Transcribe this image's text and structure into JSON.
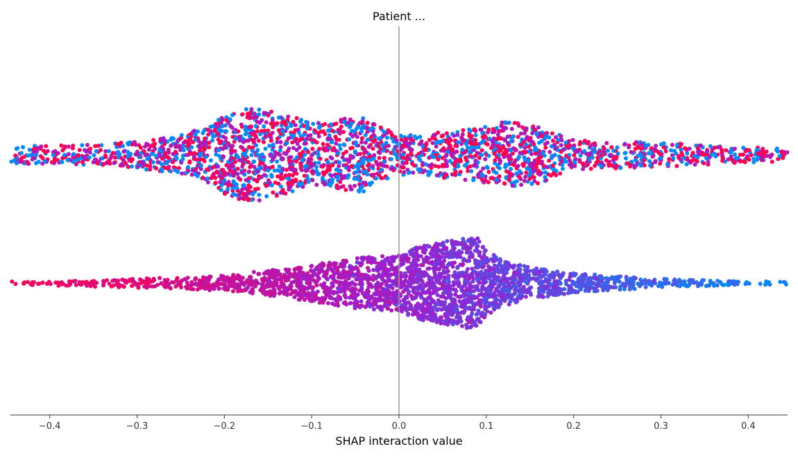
{
  "chart_data": {
    "type": "scatter",
    "subtype": "shap-beeswarm",
    "title": "Patient ...",
    "xlabel": "SHAP interaction value",
    "ylabel": "",
    "xlim": [
      -0.445,
      0.445
    ],
    "xticks": [
      {
        "value": -0.4,
        "label": "−0.4"
      },
      {
        "value": -0.3,
        "label": "−0.3"
      },
      {
        "value": -0.2,
        "label": "−0.2"
      },
      {
        "value": -0.1,
        "label": "−0.1"
      },
      {
        "value": 0.0,
        "label": "0.0"
      },
      {
        "value": 0.1,
        "label": "0.1"
      },
      {
        "value": 0.2,
        "label": "0.2"
      },
      {
        "value": 0.3,
        "label": "0.3"
      },
      {
        "value": 0.4,
        "label": "0.4"
      }
    ],
    "reference_line_x": 0.0,
    "grid": false,
    "legend": "none",
    "colors": {
      "low_feature_value": "#008bfb",
      "high_feature_value": "#ff0052",
      "mid_feature_value": "#9b1fd0",
      "reference_line": "#999999",
      "axis": "#333333"
    },
    "series": [
      {
        "row": 1,
        "points_shown": 2600,
        "x_min": -0.445,
        "x_max": 0.445,
        "density_profile": {
          "x": [
            -0.44,
            -0.4,
            -0.35,
            -0.3,
            -0.25,
            -0.22,
            -0.2,
            -0.18,
            -0.16,
            -0.14,
            -0.12,
            -0.1,
            -0.08,
            -0.06,
            -0.04,
            -0.02,
            0.0,
            0.02,
            0.05,
            0.08,
            0.1,
            0.12,
            0.14,
            0.16,
            0.18,
            0.2,
            0.25,
            0.3,
            0.35,
            0.4,
            0.44
          ],
          "density": [
            0.2,
            0.2,
            0.22,
            0.3,
            0.42,
            0.62,
            0.85,
            1.0,
            1.0,
            0.92,
            0.82,
            0.7,
            0.7,
            0.82,
            0.8,
            0.6,
            0.45,
            0.42,
            0.52,
            0.56,
            0.62,
            0.72,
            0.68,
            0.62,
            0.48,
            0.32,
            0.3,
            0.26,
            0.22,
            0.17,
            0.15
          ]
        },
        "color_pattern": "mixed"
      },
      {
        "row": 2,
        "points_shown": 2600,
        "x_min": -0.445,
        "x_max": 0.445,
        "density_profile": {
          "x": [
            -0.44,
            -0.4,
            -0.35,
            -0.3,
            -0.25,
            -0.2,
            -0.15,
            -0.1,
            -0.05,
            0.0,
            0.02,
            0.05,
            0.08,
            0.09,
            0.1,
            0.12,
            0.15,
            0.2,
            0.25,
            0.3,
            0.35,
            0.4,
            0.44
          ],
          "density": [
            0.02,
            0.05,
            0.08,
            0.1,
            0.12,
            0.17,
            0.28,
            0.4,
            0.55,
            0.62,
            0.78,
            0.9,
            1.0,
            1.0,
            0.7,
            0.5,
            0.34,
            0.22,
            0.15,
            0.1,
            0.07,
            0.04,
            0.02
          ]
        },
        "color_pattern": "gradient-high-left-low-right"
      }
    ]
  }
}
